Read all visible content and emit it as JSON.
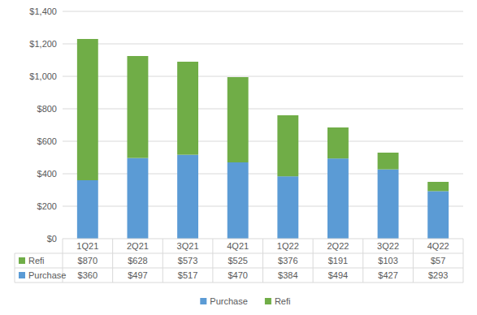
{
  "chart_data": {
    "type": "bar",
    "stacked": true,
    "grid": true,
    "legend": "bottom",
    "categories": [
      "1Q21",
      "2Q21",
      "3Q21",
      "4Q21",
      "1Q22",
      "2Q22",
      "3Q22",
      "4Q22"
    ],
    "series": [
      {
        "name": "Purchase",
        "color": "#5b9bd5",
        "values": [
          360,
          497,
          517,
          470,
          384,
          494,
          427,
          293
        ],
        "value_labels": [
          "$360",
          "$497",
          "$517",
          "$470",
          "$384",
          "$494",
          "$427",
          "$293"
        ]
      },
      {
        "name": "Refi",
        "color": "#70ad47",
        "values": [
          870,
          628,
          573,
          525,
          376,
          191,
          103,
          57
        ],
        "value_labels": [
          "$870",
          "$628",
          "$573",
          "$525",
          "$376",
          "$191",
          "$103",
          "$57"
        ]
      }
    ],
    "ylim": [
      0,
      1400
    ],
    "yticks": [
      {
        "value": 0,
        "label": "$0"
      },
      {
        "value": 200,
        "label": "$200"
      },
      {
        "value": 400,
        "label": "$400"
      },
      {
        "value": 600,
        "label": "$600"
      },
      {
        "value": 800,
        "label": "$800"
      },
      {
        "value": 1000,
        "label": "$1,000"
      },
      {
        "value": 1200,
        "label": "$1,200"
      },
      {
        "value": 1400,
        "label": "$1,400"
      }
    ]
  }
}
